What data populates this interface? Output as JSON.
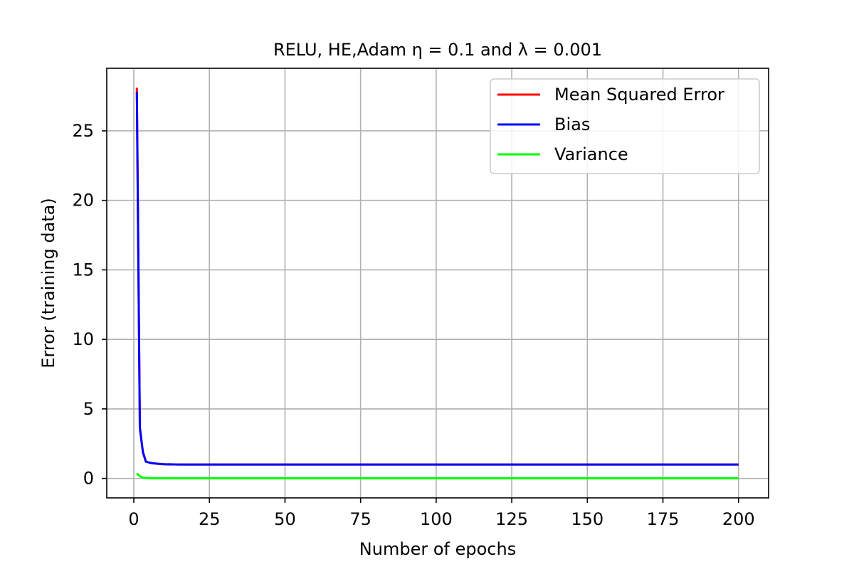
{
  "chart_data": {
    "type": "line",
    "title": "RELU, HE,Adam η = 0.1 and λ = 0.001",
    "xlabel": "Number of epochs",
    "ylabel": "Error (training data)",
    "xlim": [
      -8.95,
      209.95
    ],
    "ylim": [
      -1.4,
      29.5
    ],
    "xticks": [
      0,
      25,
      50,
      75,
      100,
      125,
      150,
      175,
      200
    ],
    "yticks": [
      0,
      5,
      10,
      15,
      20,
      25
    ],
    "grid": true,
    "legend_position": "top-right",
    "x": [
      1,
      2,
      3,
      4,
      5,
      6,
      8,
      10,
      15,
      20,
      30,
      50,
      100,
      150,
      200
    ],
    "series": [
      {
        "name": "Mean Squared Error",
        "color": "#ff0000",
        "values": [
          28.1,
          3.7,
          1.9,
          1.2,
          1.15,
          1.1,
          1.05,
          1.02,
          1.0,
          1.0,
          1.0,
          1.0,
          1.0,
          1.0,
          1.0
        ]
      },
      {
        "name": "Bias",
        "color": "#0000ff",
        "values": [
          27.8,
          3.6,
          1.9,
          1.2,
          1.15,
          1.1,
          1.05,
          1.02,
          1.0,
          1.0,
          1.0,
          1.0,
          1.0,
          1.0,
          1.0
        ]
      },
      {
        "name": "Variance",
        "color": "#00ff00",
        "values": [
          0.35,
          0.15,
          0.06,
          0.03,
          0.02,
          0.01,
          0.01,
          0.01,
          0.01,
          0.01,
          0.01,
          0.01,
          0.01,
          0.01,
          0.01
        ]
      }
    ]
  }
}
